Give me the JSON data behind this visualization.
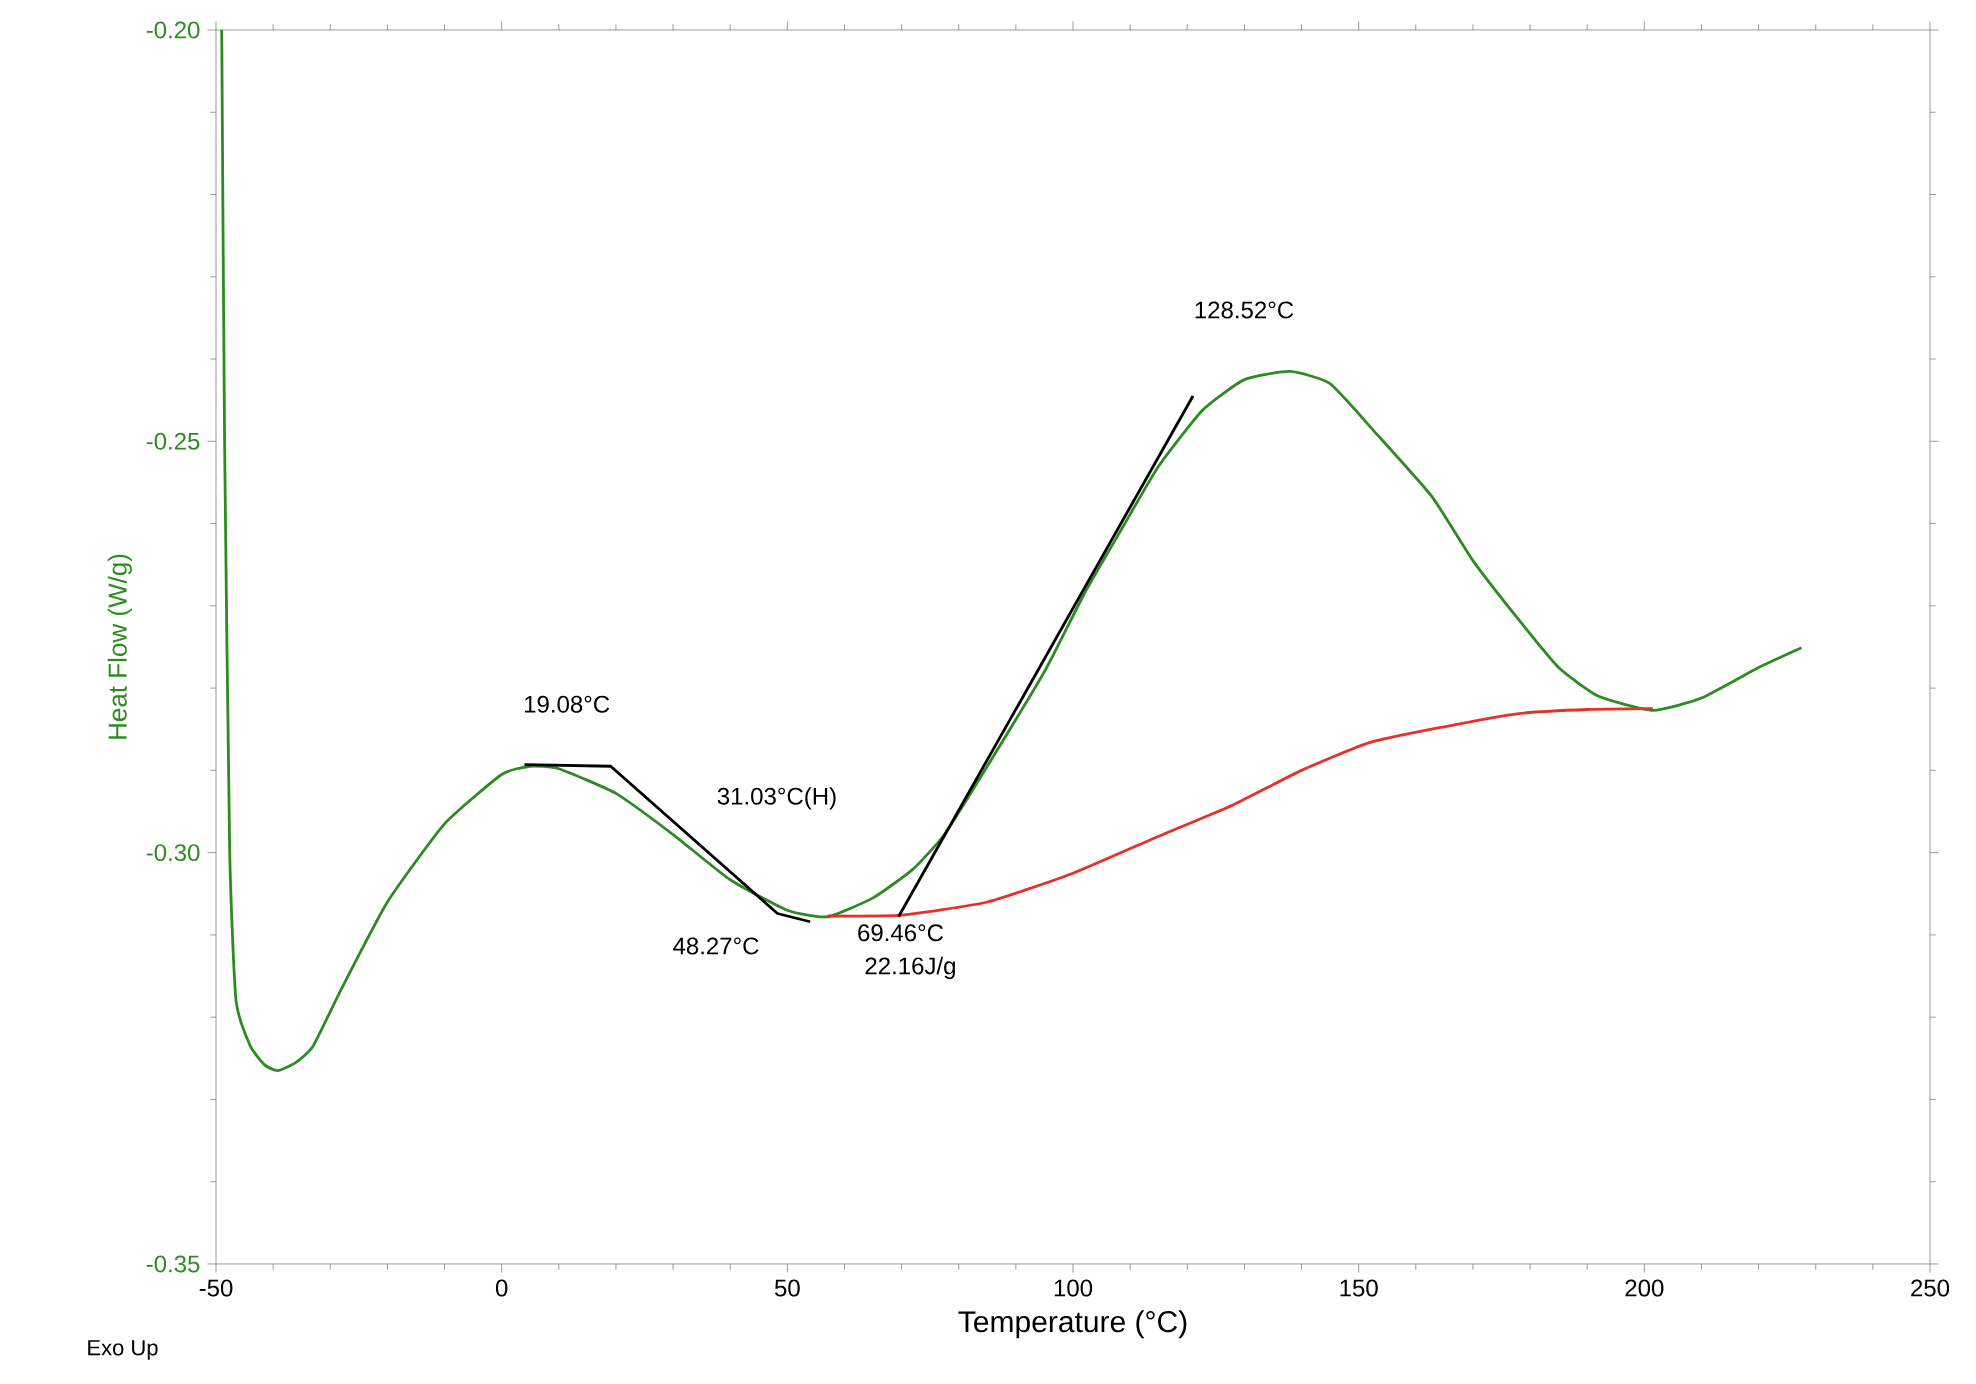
{
  "chart_data": {
    "type": "line",
    "xlabel": "Temperature (°C)",
    "ylabel": "Heat Flow (W/g)",
    "xlim": [
      -50,
      250
    ],
    "ylim": [
      -0.35,
      -0.2
    ],
    "xticks": [
      -50,
      0,
      50,
      100,
      150,
      200,
      250
    ],
    "yticks": [
      -0.35,
      {
        "value": -0.3,
        "label": "-0.30"
      },
      -0.25,
      {
        "value": -0.2,
        "label": "-0.20"
      }
    ],
    "marker": "none",
    "line_style": "solid",
    "series": [
      {
        "color": "#2e8b22",
        "x": [
          -49,
          -48.5,
          -47.6,
          -46.5,
          -44,
          -41.5,
          -39.2,
          -36,
          -33,
          -28,
          -20,
          -10,
          0,
          5,
          10,
          20,
          30,
          40,
          50,
          57,
          65,
          72,
          77.6,
          85,
          95,
          102,
          108.9,
          115,
          122.7,
          130,
          138,
          145,
          153,
          162.8,
          170,
          177.8,
          185,
          192,
          201.5,
          210,
          220,
          227.5
        ],
        "values": [
          -0.2,
          -0.25,
          -0.3,
          -0.318,
          -0.3235,
          -0.3258,
          -0.3265,
          -0.3255,
          -0.3235,
          -0.3165,
          -0.306,
          -0.2965,
          -0.2905,
          -0.2895,
          -0.2898,
          -0.2928,
          -0.2978,
          -0.3033,
          -0.307,
          -0.3078,
          -0.3055,
          -0.302,
          -0.2977,
          -0.2895,
          -0.278,
          -0.2685,
          -0.2602,
          -0.253,
          -0.2462,
          -0.2425,
          -0.2415,
          -0.243,
          -0.249,
          -0.2567,
          -0.2645,
          -0.2715,
          -0.2775,
          -0.281,
          -0.2827,
          -0.2812,
          -0.2775,
          -0.2751
        ]
      },
      {
        "color": "#e8302a",
        "x": [
          57,
          70,
          85,
          100,
          115,
          128,
          140,
          152,
          165,
          178,
          190,
          201.5
        ],
        "values": [
          -0.3077,
          -0.3076,
          -0.306,
          -0.3025,
          -0.298,
          -0.2942,
          -0.29,
          -0.2866,
          -0.2847,
          -0.2831,
          -0.2826,
          -0.2825
        ]
      },
      {
        "color": "#000000",
        "x": [
          4,
          19.08,
          48.27,
          54
        ],
        "values": [
          -0.2893,
          -0.2895,
          -0.3074,
          -0.3084
        ]
      },
      {
        "color": "#000000",
        "x": [
          69.46,
          121
        ],
        "values": [
          -0.3078,
          -0.2445
        ]
      }
    ],
    "annotations": [
      {
        "text": "19.08°C",
        "x": 19.08,
        "y": -0.2895
      },
      {
        "text": "31.03°C(H)",
        "x": 31.03,
        "y": -0.2985
      },
      "48.27°C",
      {
        "text": "69.46°C",
        "x": 69.46,
        "y": -0.3078
      },
      "22.16J/g",
      "128.52°C",
      "Exo Up"
    ]
  }
}
